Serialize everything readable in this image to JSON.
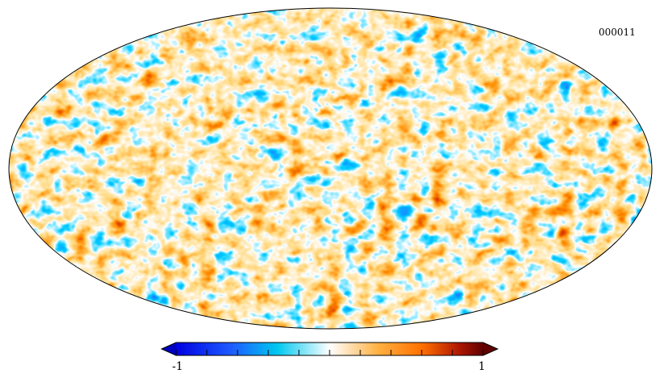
{
  "map": {
    "label": "000011",
    "projection": "mollweide",
    "colormap": [
      "#000080",
      "#0000ff",
      "#2a7fff",
      "#00c8ff",
      "#ffffff",
      "#ffd27f",
      "#ff8c00",
      "#cc3300",
      "#660000"
    ]
  },
  "colorbar": {
    "min_label": "-1",
    "max_label": "1",
    "min": -1,
    "max": 1
  }
}
